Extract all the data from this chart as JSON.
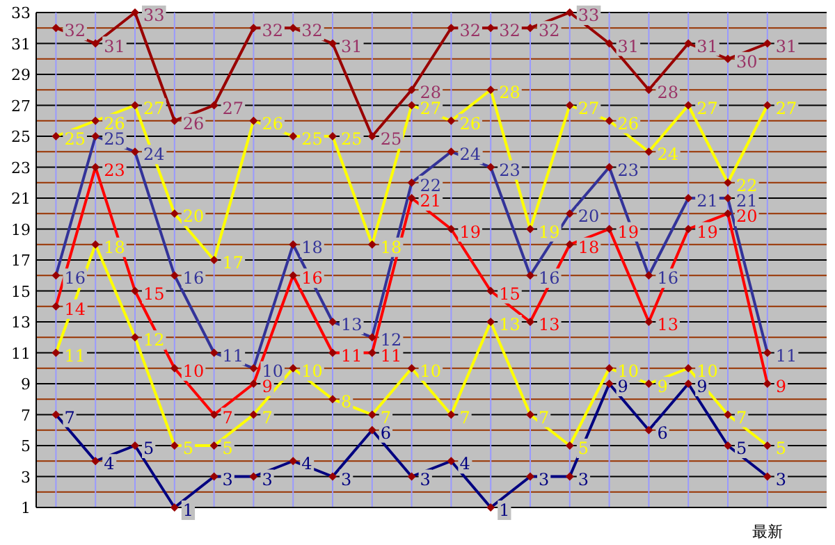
{
  "chart_data": {
    "type": "line",
    "categories": [
      null,
      null,
      null,
      null,
      null,
      null,
      null,
      null,
      null,
      null,
      null,
      null,
      null,
      null,
      null,
      null,
      null,
      null,
      "最新"
    ],
    "ylim": [
      1,
      33
    ],
    "yticks": [
      1,
      {
        "value": 2,
        "label": null
      },
      3,
      {
        "value": 4,
        "label": null
      },
      5,
      {
        "value": 6,
        "label": null
      },
      7,
      {
        "value": 8,
        "label": null
      },
      9,
      {
        "value": 10,
        "label": null
      },
      11,
      {
        "value": 12,
        "label": null
      },
      13,
      {
        "value": 14,
        "label": null
      },
      15,
      {
        "value": 16,
        "label": null
      },
      17,
      {
        "value": 18,
        "label": null
      },
      19,
      {
        "value": 20,
        "label": null
      },
      21,
      {
        "value": 22,
        "label": null
      },
      23,
      {
        "value": 24,
        "label": null
      },
      25,
      {
        "value": 26,
        "label": null
      },
      27,
      {
        "value": 28,
        "label": null
      },
      29,
      {
        "value": 30,
        "label": null
      },
      31,
      {
        "value": 32,
        "label": null
      },
      33
    ],
    "grid": true,
    "marker": "diamond",
    "line_style": "solid",
    "data_labels": true,
    "series": [
      {
        "color": "#990000",
        "values": [
          32,
          31,
          33,
          26,
          27,
          32,
          32,
          31,
          25,
          28,
          32,
          32,
          32,
          33,
          31,
          28,
          31,
          30,
          31
        ]
      },
      {
        "color": "#ffff00",
        "values": [
          25,
          26,
          27,
          20,
          17,
          26,
          25,
          25,
          18,
          27,
          26,
          28,
          19,
          27,
          26,
          24,
          27,
          22,
          27
        ]
      },
      {
        "color": "#333399",
        "values": [
          16,
          25,
          24,
          16,
          11,
          10,
          18,
          13,
          12,
          22,
          24,
          23,
          16,
          20,
          23,
          16,
          21,
          21,
          11
        ]
      },
      {
        "color": "#ff0000",
        "values": [
          14,
          23,
          15,
          10,
          7,
          9,
          16,
          11,
          11,
          21,
          19,
          15,
          13,
          18,
          19,
          13,
          19,
          20,
          9
        ]
      },
      {
        "color": "#ffff00",
        "values": [
          11,
          18,
          12,
          5,
          5,
          7,
          10,
          8,
          7,
          10,
          7,
          13,
          7,
          5,
          10,
          9,
          10,
          7,
          5
        ]
      },
      {
        "color": "#000080",
        "values": [
          7,
          4,
          5,
          1,
          3,
          3,
          4,
          3,
          6,
          3,
          4,
          1,
          3,
          3,
          9,
          6,
          9,
          5,
          3
        ]
      }
    ]
  }
}
